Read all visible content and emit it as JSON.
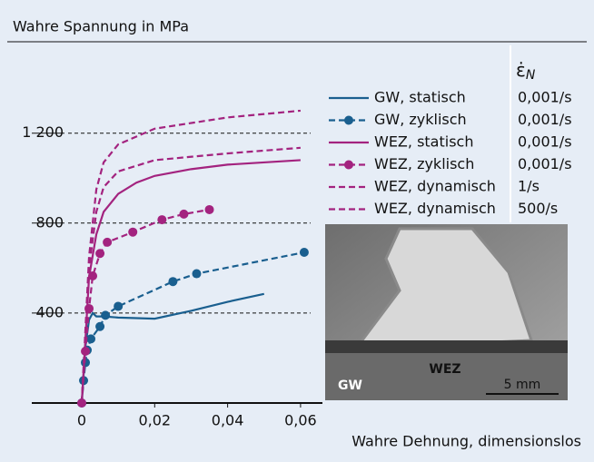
{
  "chart_data": {
    "type": "line",
    "title": "Wahre Spannung in MPa",
    "x_label": "Wahre Dehnung, dimensionslos",
    "rate_header_symbol": "ε̇",
    "rate_header_subscript": "N",
    "xlim": [
      -0.0137,
      0.066
    ],
    "ylim": [
      0,
      1550
    ],
    "xticks": [
      0,
      {
        "value": 0.02,
        "label": "0,02"
      },
      {
        "value": 0.04,
        "label": "0,04"
      },
      {
        "value": 0.06,
        "label": "0,06"
      }
    ],
    "yticks": [
      400,
      800,
      {
        "value": 1200,
        "label": "1 200"
      }
    ],
    "grid": true,
    "series": [
      {
        "name": "GW, statisch",
        "rate": "0,001/s",
        "color": "#1a5f8f",
        "dashed": false,
        "markers": false,
        "x": [
          0,
          0.001,
          0.002,
          0.003,
          0.004,
          0.006,
          0.01,
          0.02,
          0.03,
          0.04,
          0.05
        ],
        "y": [
          0,
          250,
          370,
          400,
          385,
          385,
          380,
          375,
          410,
          450,
          485
        ]
      },
      {
        "name": "GW, zyklisch",
        "rate": "0,001/s",
        "color": "#1a5f8f",
        "dashed": true,
        "markers": true,
        "x": [
          0,
          0.0005,
          0.001,
          0.0015,
          0.0025,
          0.005,
          0.0065,
          0.01,
          0.025,
          0.0315,
          0.061
        ],
        "y": [
          0,
          100,
          180,
          235,
          285,
          340,
          390,
          430,
          540,
          575,
          670
        ]
      },
      {
        "name": "WEZ, statisch",
        "rate": "0,001/s",
        "color": "#a3237f",
        "dashed": false,
        "markers": false,
        "x": [
          0,
          0.002,
          0.004,
          0.006,
          0.01,
          0.015,
          0.02,
          0.03,
          0.04,
          0.06
        ],
        "y": [
          0,
          560,
          750,
          850,
          930,
          980,
          1010,
          1040,
          1060,
          1080
        ]
      },
      {
        "name": "WEZ, zyklisch",
        "rate": "0,001/s",
        "color": "#a3237f",
        "dashed": true,
        "markers": true,
        "x": [
          0,
          0.001,
          0.002,
          0.003,
          0.005,
          0.007,
          0.014,
          0.022,
          0.028,
          0.035
        ],
        "y": [
          0,
          230,
          420,
          565,
          665,
          715,
          760,
          815,
          840,
          860
        ]
      },
      {
        "name": "WEZ, dynamisch",
        "rate": "1/s",
        "color": "#a3237f",
        "dashed": true,
        "markers": false,
        "x": [
          0,
          0.002,
          0.004,
          0.006,
          0.01,
          0.02,
          0.04,
          0.06
        ],
        "y": [
          0,
          600,
          850,
          960,
          1030,
          1080,
          1110,
          1135
        ]
      },
      {
        "name": "WEZ, dynamisch",
        "rate": "500/s",
        "color": "#a3237f",
        "dashed": true,
        "markers": false,
        "x": [
          0,
          0.002,
          0.004,
          0.006,
          0.01,
          0.02,
          0.04,
          0.06
        ],
        "y": [
          0,
          650,
          950,
          1070,
          1150,
          1220,
          1270,
          1300
        ]
      }
    ],
    "image_labels": [
      "GW",
      "WEZ",
      "5 mm"
    ]
  }
}
